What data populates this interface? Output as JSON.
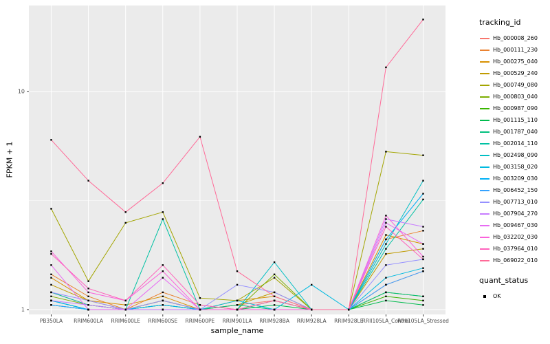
{
  "chart_data": {
    "type": "line",
    "title": "",
    "xlabel": "sample_name",
    "ylabel": "FPKM + 1",
    "y_scale": "log10",
    "ylim": [
      1,
      25
    ],
    "y_major_ticks": [
      10,
      1
    ],
    "y_minor_ticks": [
      3.1623
    ],
    "grid": true,
    "panel_bg": "#EBEBEB",
    "grid_color": "#FFFFFF",
    "point_color": "#000000",
    "categories": [
      "PB350LA",
      "RRIM600LA",
      "RRIM600LE",
      "RRIM600SE",
      "RRIM600PE",
      "RRIM901LA",
      "RRIM928BA",
      "RRIM928LA",
      "RRIM928LE",
      "RRII105LA_Control",
      "RRII105LA_Stressed"
    ],
    "series": [
      {
        "name": "Hb_000008_260",
        "color": "#F8766D",
        "values": [
          1.2,
          1.05,
          1.0,
          1.1,
          1.0,
          1.05,
          1.1,
          1.0,
          1.0,
          1.3,
          1.5
        ]
      },
      {
        "name": "Hb_000111_230",
        "color": "#EA8331",
        "values": [
          1.45,
          1.15,
          1.0,
          1.2,
          1.05,
          1.0,
          1.1,
          1.0,
          1.0,
          2.1,
          2.3
        ]
      },
      {
        "name": "Hb_000275_040",
        "color": "#D89000",
        "values": [
          1.4,
          1.1,
          1.05,
          1.15,
          1.0,
          1.1,
          1.15,
          1.0,
          1.0,
          2.2,
          2.0
        ]
      },
      {
        "name": "Hb_000529_240",
        "color": "#C09B00",
        "values": [
          1.3,
          1.1,
          1.0,
          1.1,
          1.0,
          1.05,
          1.2,
          1.0,
          1.0,
          1.8,
          1.9
        ]
      },
      {
        "name": "Hb_000749_080",
        "color": "#A3A500",
        "values": [
          2.9,
          1.35,
          2.5,
          2.8,
          1.13,
          1.1,
          1.4,
          1.0,
          1.0,
          5.3,
          5.1
        ]
      },
      {
        "name": "Hb_000803_040",
        "color": "#7CAE00",
        "values": [
          1.15,
          1.05,
          1.0,
          1.1,
          1.0,
          1.0,
          1.45,
          1.0,
          1.0,
          1.2,
          1.15
        ]
      },
      {
        "name": "Hb_000987_090",
        "color": "#39B600",
        "values": [
          1.1,
          1.0,
          1.0,
          1.05,
          1.0,
          1.0,
          1.1,
          1.0,
          1.0,
          1.15,
          1.1
        ]
      },
      {
        "name": "Hb_001115_110",
        "color": "#00BB4E",
        "values": [
          1.05,
          1.0,
          1.0,
          1.0,
          1.0,
          1.0,
          1.05,
          1.0,
          1.0,
          1.1,
          1.05
        ]
      },
      {
        "name": "Hb_001787_040",
        "color": "#00BF7D",
        "values": [
          1.1,
          1.0,
          1.0,
          1.05,
          1.0,
          1.05,
          1.0,
          1.0,
          1.0,
          1.2,
          1.15
        ]
      },
      {
        "name": "Hb_002014_110",
        "color": "#00C1A3",
        "values": [
          1.2,
          1.05,
          1.0,
          2.6,
          1.0,
          1.0,
          1.0,
          1.0,
          1.0,
          1.9,
          3.2
        ]
      },
      {
        "name": "Hb_002498_090",
        "color": "#00BFC4",
        "values": [
          1.1,
          1.0,
          1.0,
          1.0,
          1.0,
          1.0,
          1.65,
          1.0,
          1.0,
          2.0,
          3.9
        ]
      },
      {
        "name": "Hb_003158_020",
        "color": "#00BAE0",
        "values": [
          1.05,
          1.0,
          1.0,
          1.0,
          1.0,
          1.1,
          1.0,
          1.3,
          1.0,
          1.4,
          1.55
        ]
      },
      {
        "name": "Hb_003209_030",
        "color": "#00B0F6",
        "values": [
          1.1,
          1.0,
          1.0,
          1.05,
          1.0,
          1.0,
          1.0,
          1.0,
          1.0,
          2.1,
          3.4
        ]
      },
      {
        "name": "Hb_006452_150",
        "color": "#35A2FF",
        "values": [
          1.05,
          1.0,
          1.0,
          1.0,
          1.0,
          1.0,
          1.0,
          1.0,
          1.0,
          1.3,
          1.5
        ]
      },
      {
        "name": "Hb_007713_010",
        "color": "#9590FF",
        "values": [
          1.2,
          1.1,
          1.0,
          1.1,
          1.0,
          1.3,
          1.2,
          1.0,
          1.0,
          1.6,
          1.7
        ]
      },
      {
        "name": "Hb_007904_270",
        "color": "#C77CFF",
        "values": [
          1.1,
          1.05,
          1.0,
          1.0,
          1.0,
          1.0,
          1.0,
          1.0,
          1.0,
          2.6,
          2.4
        ]
      },
      {
        "name": "Hb_009467_030",
        "color": "#E76BF3",
        "values": [
          1.6,
          1.0,
          1.0,
          1.4,
          1.0,
          1.0,
          1.0,
          1.0,
          1.0,
          2.5,
          2.0
        ]
      },
      {
        "name": "Hb_032202_030",
        "color": "#FA62DB",
        "values": [
          1.85,
          1.2,
          1.1,
          1.5,
          1.0,
          1.0,
          1.0,
          1.0,
          1.0,
          2.7,
          1.75
        ]
      },
      {
        "name": "Hb_037964_010",
        "color": "#FF62BC",
        "values": [
          1.8,
          1.25,
          1.1,
          1.6,
          1.05,
          1.0,
          1.1,
          1.0,
          1.0,
          2.4,
          1.7
        ]
      },
      {
        "name": "Hb_069022_010",
        "color": "#FF6A98",
        "values": [
          6.0,
          3.9,
          2.8,
          3.8,
          6.2,
          1.5,
          1.15,
          1.0,
          1.0,
          12.9,
          21.4
        ]
      }
    ],
    "legend": {
      "position": "right",
      "color_title": "tracking_id",
      "shape_title": "quant_status",
      "shape_label": "OK"
    }
  }
}
